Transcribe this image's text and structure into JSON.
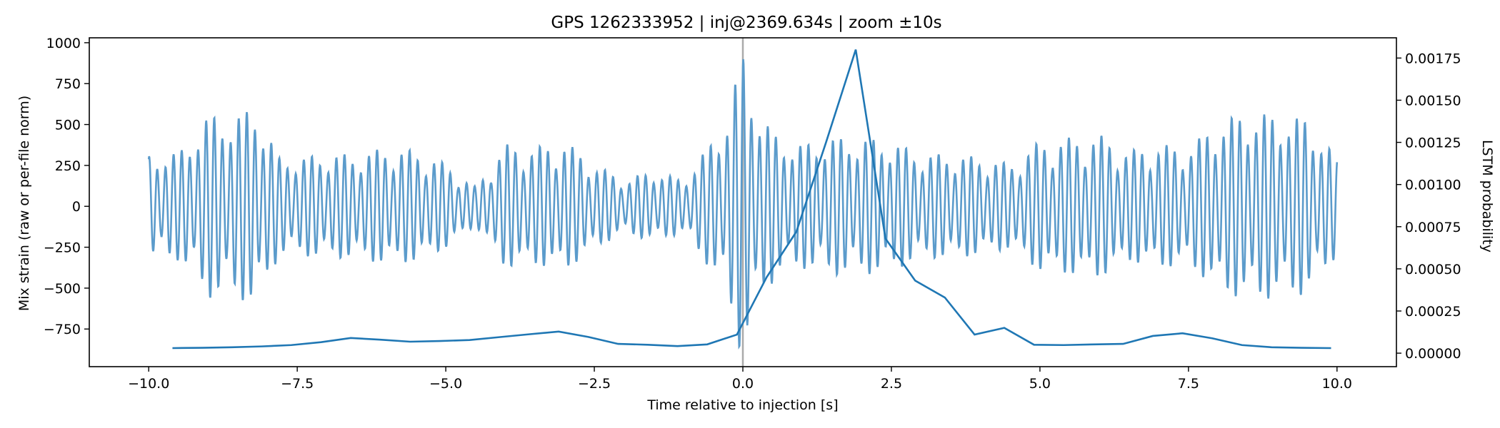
{
  "chart_data": {
    "type": "line",
    "title": "GPS 1262333952 | inj@2369.634s | zoom ±10s",
    "xlabel": "Time relative to injection [s]",
    "ylabel": "Mix strain (raw or per-file norm)",
    "y2label": "LSTM probability",
    "xlim": [
      -11,
      11
    ],
    "ylim": [
      -980,
      1030
    ],
    "y2lim": [
      -8e-05,
      0.00187
    ],
    "x_ticks": [
      -10,
      -7.5,
      -5,
      -2.5,
      0,
      2.5,
      5,
      7.5,
      10
    ],
    "x_tick_labels": [
      "−10.0",
      "−7.5",
      "−5.0",
      "−2.5",
      "0.0",
      "2.5",
      "5.0",
      "7.5",
      "10.0"
    ],
    "y_ticks": [
      -750,
      -500,
      -250,
      0,
      250,
      500,
      750,
      1000
    ],
    "y_tick_labels": [
      "−750",
      "−500",
      "−250",
      "0",
      "250",
      "500",
      "750",
      "1000"
    ],
    "y2_ticks": [
      0,
      0.00025,
      0.0005,
      0.00075,
      0.001,
      0.00125,
      0.0015,
      0.00175
    ],
    "y2_tick_labels": [
      "0.00000",
      "0.00025",
      "0.00050",
      "0.00075",
      "0.00100",
      "0.00125",
      "0.00150",
      "0.00175"
    ],
    "grid": false,
    "injection_marker_x": 0,
    "series": [
      {
        "axis": "left",
        "color": "#5b9bcb",
        "envelope_t": [
          -10,
          -9.5,
          -9.0,
          -8.5,
          -8.2,
          -7.8,
          -7.5,
          -7.0,
          -6.5,
          -6.0,
          -5.5,
          -5.0,
          -4.5,
          -4.0,
          -3.5,
          -3.0,
          -2.5,
          -2.0,
          -1.5,
          -1.0,
          -0.6,
          -0.3,
          0.0,
          0.3,
          0.6,
          1.0,
          1.5,
          2.0,
          2.5,
          3.0,
          3.5,
          4.0,
          4.5,
          5.0,
          5.5,
          6.0,
          6.5,
          7.0,
          7.5,
          8.0,
          8.5,
          9.0,
          9.5,
          10.0
        ],
        "envelope_a": [
          320,
          330,
          560,
          560,
          620,
          300,
          300,
          320,
          320,
          360,
          340,
          260,
          120,
          380,
          360,
          400,
          260,
          160,
          220,
          160,
          360,
          520,
          950,
          560,
          420,
          380,
          420,
          420,
          400,
          320,
          320,
          300,
          260,
          400,
          420,
          440,
          340,
          380,
          360,
          520,
          580,
          560,
          540,
          300
        ]
      },
      {
        "axis": "right",
        "color": "#1f77b4",
        "x": [
          -9.6,
          -9.1,
          -8.6,
          -8.1,
          -7.6,
          -7.1,
          -6.6,
          -6.1,
          -5.6,
          -5.1,
          -4.6,
          -4.1,
          -3.6,
          -3.1,
          -2.6,
          -2.1,
          -1.6,
          -1.1,
          -0.6,
          -0.1,
          0.4,
          0.9,
          1.4,
          1.9,
          2.4,
          2.9,
          3.4,
          3.9,
          4.4,
          4.9,
          5.4,
          5.9,
          6.4,
          6.9,
          7.4,
          7.9,
          8.4,
          8.9,
          9.4,
          9.9
        ],
        "values": [
          3e-05,
          3.2e-05,
          3.5e-05,
          4e-05,
          4.8e-05,
          6.5e-05,
          9e-05,
          8e-05,
          6.8e-05,
          7.2e-05,
          7.8e-05,
          9.5e-05,
          0.000112,
          0.000128,
          9.6e-05,
          5.5e-05,
          5e-05,
          4.2e-05,
          5.2e-05,
          0.00011,
          0.00045,
          0.00072,
          0.00125,
          0.0018,
          0.00068,
          0.00043,
          0.00033,
          0.00011,
          0.00015,
          5e-05,
          4.8e-05,
          5.2e-05,
          5.5e-05,
          0.000102,
          0.000118,
          8.8e-05,
          4.8e-05,
          3.5e-05,
          3.2e-05,
          3e-05
        ]
      }
    ]
  }
}
